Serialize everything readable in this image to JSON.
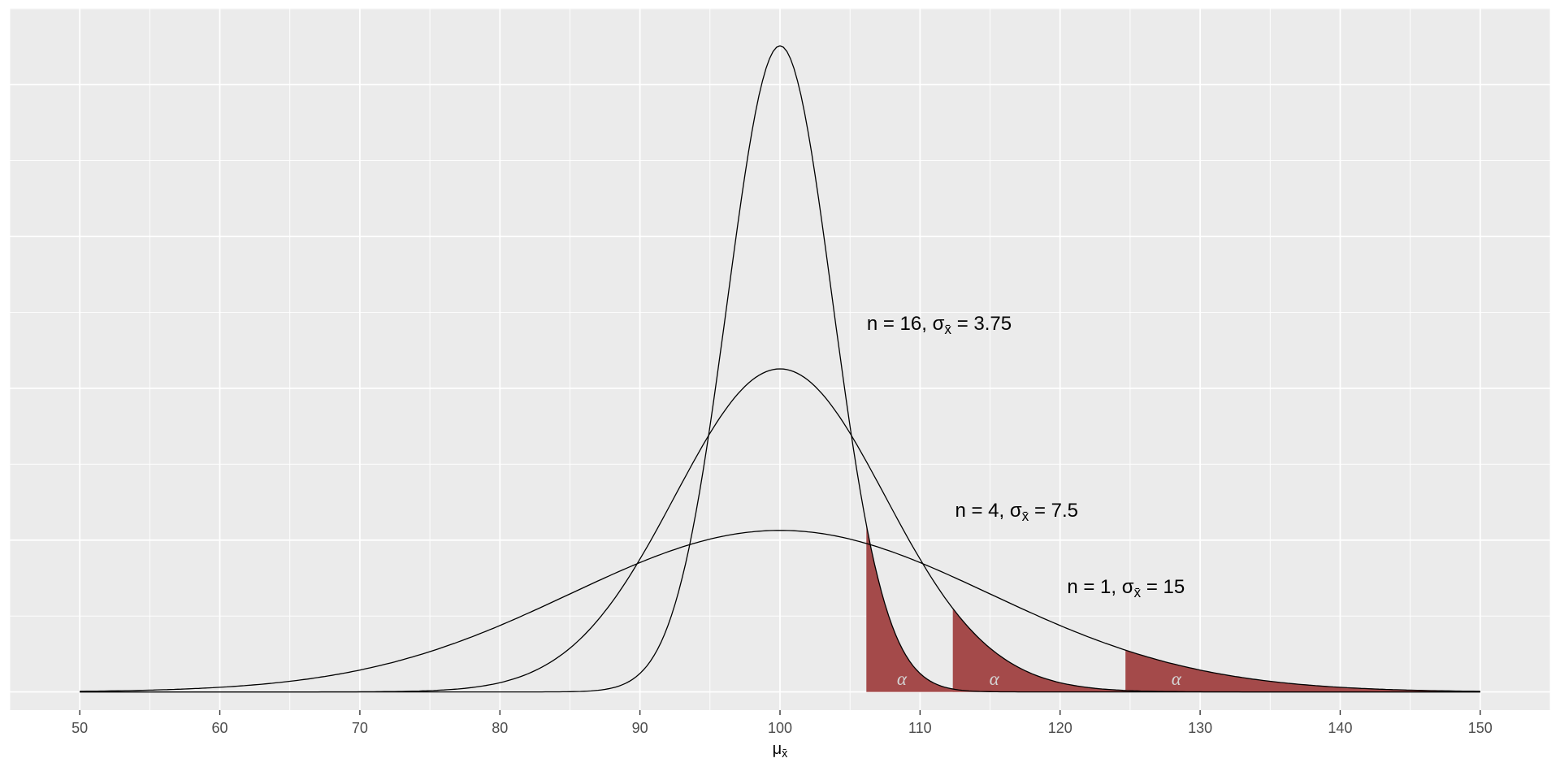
{
  "chart_data": {
    "type": "line",
    "title": "",
    "subtitle": "",
    "xlabel": "μx̄",
    "xlim": [
      45,
      155
    ],
    "ylim": [
      -0.003,
      0.1126
    ],
    "curve_range": [
      50,
      150
    ],
    "mean": 100,
    "alpha_critical_z": 1.645,
    "x_major_ticks": [
      50,
      60,
      70,
      80,
      90,
      100,
      110,
      120,
      130,
      140,
      150
    ],
    "x_gridlines_minor": [
      45,
      55,
      65,
      75,
      85,
      95,
      105,
      115,
      125,
      135,
      145,
      155
    ],
    "y_gridlines_major": [
      0,
      0.025,
      0.05,
      0.075,
      0.1
    ],
    "y_gridlines_minor": [
      0.0125,
      0.0375,
      0.0625,
      0.0875,
      0.1125
    ],
    "grid": "on",
    "legend": "none",
    "series": [
      {
        "n": 16,
        "sigma": 3.75,
        "peak_density": 0.1064,
        "critical_value": 106.17,
        "label": "n = 16, σx̄ = 3.75",
        "label_x": 106.2,
        "label_y": 0.0605
      },
      {
        "n": 4,
        "sigma": 7.5,
        "peak_density": 0.0532,
        "critical_value": 112.34,
        "label": "n = 4, σx̄ = 7.5",
        "label_x": 112.5,
        "label_y": 0.0298
      },
      {
        "n": 1,
        "sigma": 15,
        "peak_density": 0.0266,
        "critical_value": 124.67,
        "label": "n = 1, σx̄ = 15",
        "label_x": 120.5,
        "label_y": 0.0172
      }
    ],
    "alpha_labels": [
      {
        "text": "α",
        "x": 108.7
      },
      {
        "text": "α",
        "x": 115.3
      },
      {
        "text": "α",
        "x": 128.3
      }
    ],
    "colors": {
      "panel_background": "#EBEBEB",
      "gridline": "#FFFFFF",
      "curve": "#000000",
      "shade": "#A44A4A",
      "tick": "#333333",
      "tick_label": "#4D4D4D",
      "annotation": "#000000",
      "alpha_text": "#D4D4D4"
    }
  }
}
